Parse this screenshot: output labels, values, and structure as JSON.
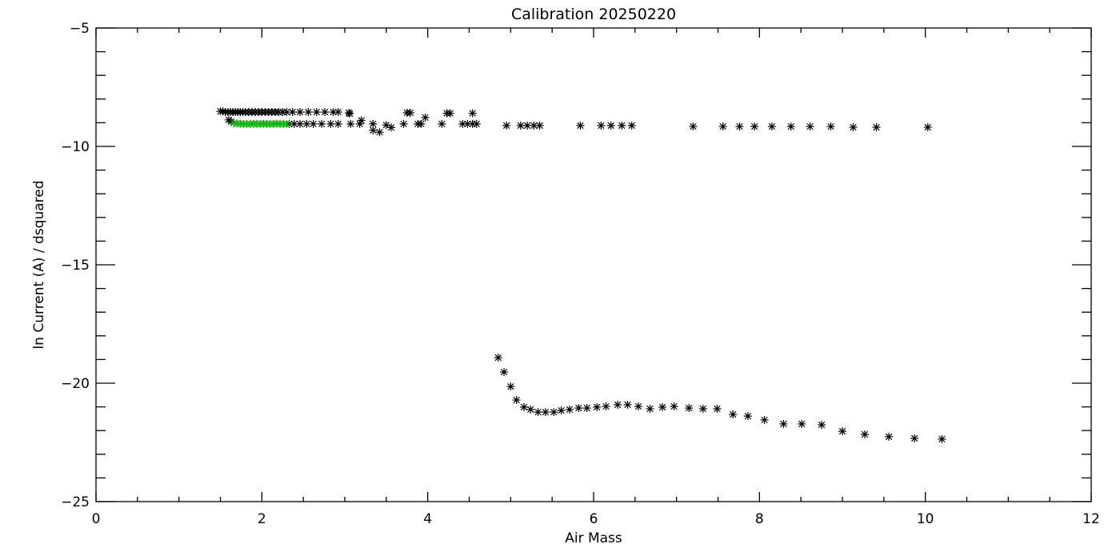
{
  "chart_data": {
    "type": "scatter",
    "title": "Calibration 20250220",
    "xlabel": "Air Mass",
    "ylabel": "ln Current (A) / dsquared",
    "xlim": [
      0,
      12
    ],
    "ylim": [
      -25,
      -5
    ],
    "x_ticks": [
      "0",
      "2",
      "4",
      "6",
      "8",
      "10",
      "12"
    ],
    "y_ticks": [
      "−25",
      "−20",
      "−15",
      "−10",
      "−5"
    ],
    "x_tick_values": [
      0,
      2,
      4,
      6,
      8,
      10,
      12
    ],
    "y_tick_values": [
      -25,
      -20,
      -15,
      -10,
      -5
    ],
    "grid": false,
    "marker": "asterisk",
    "series": [
      {
        "color": "#000000",
        "x": [
          1.5,
          1.53,
          1.56,
          1.59,
          1.62,
          1.65,
          1.68,
          1.71,
          1.74,
          1.77,
          1.8,
          1.84,
          1.88,
          1.92,
          1.96,
          2.0,
          2.04,
          2.08,
          2.12,
          2.16,
          2.2,
          2.25,
          2.3,
          2.37,
          2.46,
          2.56,
          2.66,
          2.76,
          2.86,
          2.92,
          3.05,
          3.06,
          1.6,
          1.63,
          2.33,
          2.39,
          2.46,
          2.54,
          2.62,
          2.72,
          2.83,
          2.92,
          3.07,
          3.18,
          3.2,
          3.34,
          3.34,
          3.42,
          3.5,
          3.56,
          3.71,
          3.75,
          3.79,
          3.88,
          3.92,
          3.97,
          4.17,
          4.23,
          4.27,
          4.42,
          4.48,
          4.54,
          4.54,
          4.59,
          4.95,
          5.12,
          5.2,
          5.28,
          5.35,
          5.84,
          6.09,
          6.21,
          6.34,
          6.46,
          7.2,
          7.56,
          7.76,
          7.94,
          8.15,
          8.38,
          8.61,
          8.86,
          9.13,
          9.41,
          10.03,
          4.85,
          4.92,
          5.0,
          5.07,
          5.16,
          5.24,
          5.33,
          5.42,
          5.52,
          5.61,
          5.71,
          5.82,
          5.92,
          6.04,
          6.15,
          6.29,
          6.41,
          6.54,
          6.68,
          6.83,
          6.97,
          7.15,
          7.32,
          7.49,
          7.68,
          7.86,
          8.06,
          8.29,
          8.51,
          8.75,
          9.0,
          9.27,
          9.56,
          9.87,
          10.2
        ],
        "y": [
          -8.52,
          -8.52,
          -8.55,
          -8.55,
          -8.55,
          -8.55,
          -8.55,
          -8.55,
          -8.55,
          -8.55,
          -8.55,
          -8.55,
          -8.55,
          -8.55,
          -8.55,
          -8.55,
          -8.55,
          -8.55,
          -8.55,
          -8.55,
          -8.55,
          -8.55,
          -8.55,
          -8.55,
          -8.55,
          -8.55,
          -8.55,
          -8.55,
          -8.55,
          -8.55,
          -8.58,
          -8.62,
          -8.88,
          -8.95,
          -9.05,
          -9.05,
          -9.05,
          -9.05,
          -9.05,
          -9.05,
          -9.05,
          -9.05,
          -9.05,
          -9.05,
          -8.9,
          -9.05,
          -9.32,
          -9.4,
          -9.1,
          -9.2,
          -9.05,
          -8.58,
          -8.58,
          -9.05,
          -9.05,
          -8.78,
          -9.05,
          -8.6,
          -8.6,
          -9.05,
          -9.05,
          -8.6,
          -9.05,
          -9.05,
          -9.12,
          -9.12,
          -9.12,
          -9.12,
          -9.12,
          -9.12,
          -9.12,
          -9.12,
          -9.12,
          -9.12,
          -9.16,
          -9.16,
          -9.16,
          -9.16,
          -9.16,
          -9.16,
          -9.16,
          -9.16,
          -9.19,
          -9.19,
          -9.19,
          -18.92,
          -19.53,
          -20.14,
          -20.71,
          -21.01,
          -21.11,
          -21.22,
          -21.22,
          -21.22,
          -21.15,
          -21.11,
          -21.05,
          -21.05,
          -21.01,
          -20.98,
          -20.91,
          -20.91,
          -20.98,
          -21.08,
          -21.01,
          -20.98,
          -21.05,
          -21.08,
          -21.08,
          -21.32,
          -21.39,
          -21.55,
          -21.72,
          -21.72,
          -21.76,
          -22.03,
          -22.16,
          -22.26,
          -22.33,
          -22.36
        ]
      },
      {
        "color": "#00b400",
        "x": [
          1.66,
          1.7,
          1.74,
          1.78,
          1.82,
          1.86,
          1.9,
          1.94,
          1.98,
          2.02,
          2.06,
          2.1,
          2.14,
          2.18,
          2.22,
          2.26,
          2.3
        ],
        "y": [
          -9.02,
          -9.03,
          -9.04,
          -9.05,
          -9.05,
          -9.05,
          -9.04,
          -9.05,
          -9.05,
          -9.04,
          -9.05,
          -9.05,
          -9.05,
          -9.04,
          -9.05,
          -9.05,
          -9.05
        ]
      }
    ]
  }
}
